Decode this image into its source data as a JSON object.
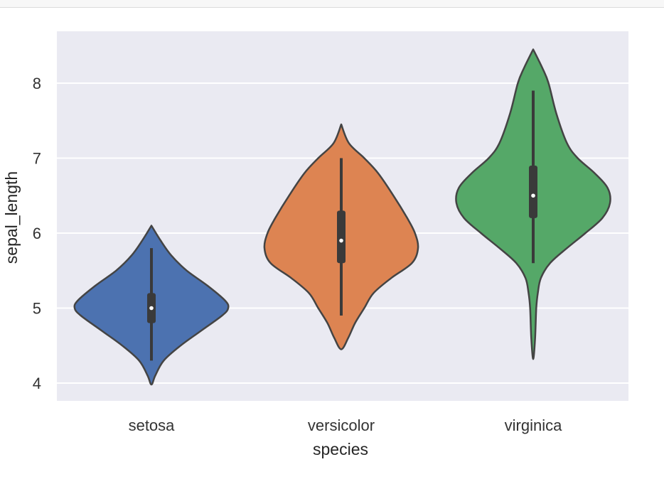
{
  "chart_data": {
    "type": "violin",
    "xlabel": "species",
    "ylabel": "sepal_length",
    "categories": [
      "setosa",
      "versicolor",
      "virginica"
    ],
    "y_ticks": [
      4,
      5,
      6,
      7,
      8
    ],
    "ylim": [
      3.8,
      8.7
    ],
    "grid": true,
    "legend": "none",
    "colors": {
      "background": "#eaeaf2",
      "grid": "#ffffff",
      "outline": "#444444",
      "box": "#3a3a3a",
      "median_dot": "#ffffff"
    },
    "violins": [
      {
        "category": "setosa",
        "color": "#4c72b0",
        "min": 4.3,
        "q1": 4.8,
        "median": 5.0,
        "q3": 5.2,
        "max": 5.8,
        "kde_top": 6.1,
        "kde_bottom": 3.98,
        "profile": [
          [
            6.1,
            0.0
          ],
          [
            5.9,
            0.12
          ],
          [
            5.7,
            0.26
          ],
          [
            5.5,
            0.46
          ],
          [
            5.3,
            0.73
          ],
          [
            5.1,
            0.96
          ],
          [
            5.0,
            1.0
          ],
          [
            4.9,
            0.92
          ],
          [
            4.7,
            0.65
          ],
          [
            4.5,
            0.38
          ],
          [
            4.3,
            0.16
          ],
          [
            4.1,
            0.05
          ],
          [
            3.98,
            0.0
          ]
        ]
      },
      {
        "category": "versicolor",
        "color": "#dd8452",
        "min": 4.9,
        "q1": 5.6,
        "median": 5.9,
        "q3": 6.3,
        "max": 7.0,
        "kde_top": 7.45,
        "kde_bottom": 4.45,
        "profile": [
          [
            7.45,
            0.0
          ],
          [
            7.2,
            0.1
          ],
          [
            7.0,
            0.3
          ],
          [
            6.8,
            0.48
          ],
          [
            6.5,
            0.68
          ],
          [
            6.2,
            0.86
          ],
          [
            6.0,
            0.96
          ],
          [
            5.8,
            1.0
          ],
          [
            5.6,
            0.92
          ],
          [
            5.4,
            0.65
          ],
          [
            5.2,
            0.42
          ],
          [
            5.0,
            0.3
          ],
          [
            4.8,
            0.18
          ],
          [
            4.6,
            0.09
          ],
          [
            4.45,
            0.0
          ]
        ]
      },
      {
        "category": "virginica",
        "color": "#55a868",
        "min": 5.6,
        "q1": 6.2,
        "median": 6.5,
        "q3": 6.9,
        "max": 7.9,
        "kde_top": 8.45,
        "kde_bottom": 4.32,
        "profile": [
          [
            8.45,
            0.0
          ],
          [
            8.2,
            0.12
          ],
          [
            8.0,
            0.2
          ],
          [
            7.6,
            0.3
          ],
          [
            7.2,
            0.44
          ],
          [
            7.0,
            0.58
          ],
          [
            6.8,
            0.8
          ],
          [
            6.6,
            0.97
          ],
          [
            6.4,
            1.0
          ],
          [
            6.2,
            0.9
          ],
          [
            6.0,
            0.68
          ],
          [
            5.8,
            0.44
          ],
          [
            5.6,
            0.22
          ],
          [
            5.4,
            0.1
          ],
          [
            5.2,
            0.06
          ],
          [
            5.0,
            0.04
          ],
          [
            4.6,
            0.025
          ],
          [
            4.32,
            0.0
          ]
        ]
      }
    ]
  }
}
